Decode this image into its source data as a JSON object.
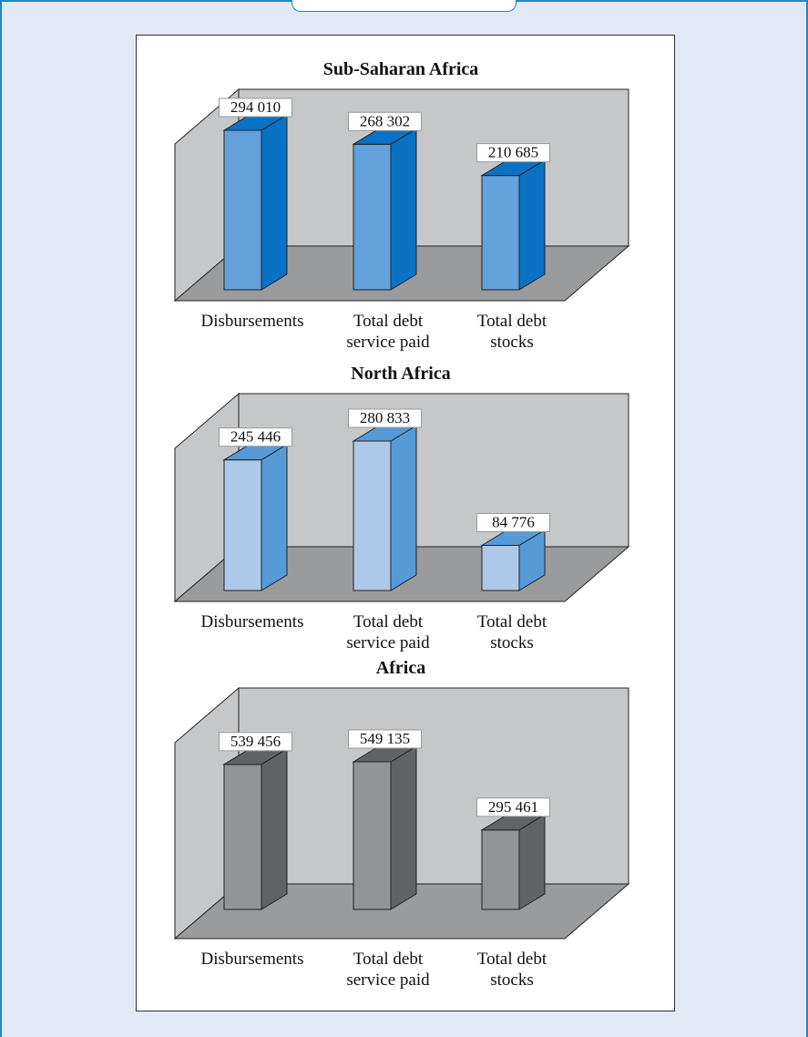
{
  "chart_data": [
    {
      "type": "bar",
      "title": "Sub-Saharan Africa",
      "categories": [
        "Disbursements",
        "Total debt service paid",
        "Total debt stocks"
      ],
      "category_lines": [
        [
          "Disbursements"
        ],
        [
          "Total debt",
          "service paid"
        ],
        [
          "Total debt",
          "stocks"
        ]
      ],
      "values": [
        294010,
        268302,
        210685
      ],
      "value_labels": [
        "294 010",
        "268 302",
        "210 685"
      ],
      "colors": {
        "front": "#62a1dc",
        "side": "#0a72c4",
        "top": "#0a72c4"
      }
    },
    {
      "type": "bar",
      "title": "North Africa",
      "categories": [
        "Disbursements",
        "Total debt service paid",
        "Total debt stocks"
      ],
      "category_lines": [
        [
          "Disbursements"
        ],
        [
          "Total debt",
          "service paid"
        ],
        [
          "Total debt",
          "stocks"
        ]
      ],
      "values": [
        245446,
        280833,
        84776
      ],
      "value_labels": [
        "245 446",
        "280 833",
        "84 776"
      ],
      "colors": {
        "front": "#aec8ea",
        "side": "#569ad8",
        "top": "#569ad8"
      }
    },
    {
      "type": "bar",
      "title": "Africa",
      "categories": [
        "Disbursements",
        "Total debt service paid",
        "Total debt stocks"
      ],
      "category_lines": [
        [
          "Disbursements"
        ],
        [
          "Total debt",
          "service paid"
        ],
        [
          "Total debt",
          "stocks"
        ]
      ],
      "values": [
        539456,
        549135,
        295461
      ],
      "value_labels": [
        "539 456",
        "549 135",
        "295 461"
      ],
      "colors": {
        "front": "#929497",
        "side": "#626365",
        "top": "#626365"
      }
    }
  ],
  "colors": {
    "page_background": "#e3e8f5",
    "frame_border": "#1f86c8",
    "wall": "#c6c7c9",
    "floor": "#9a9b9d"
  }
}
